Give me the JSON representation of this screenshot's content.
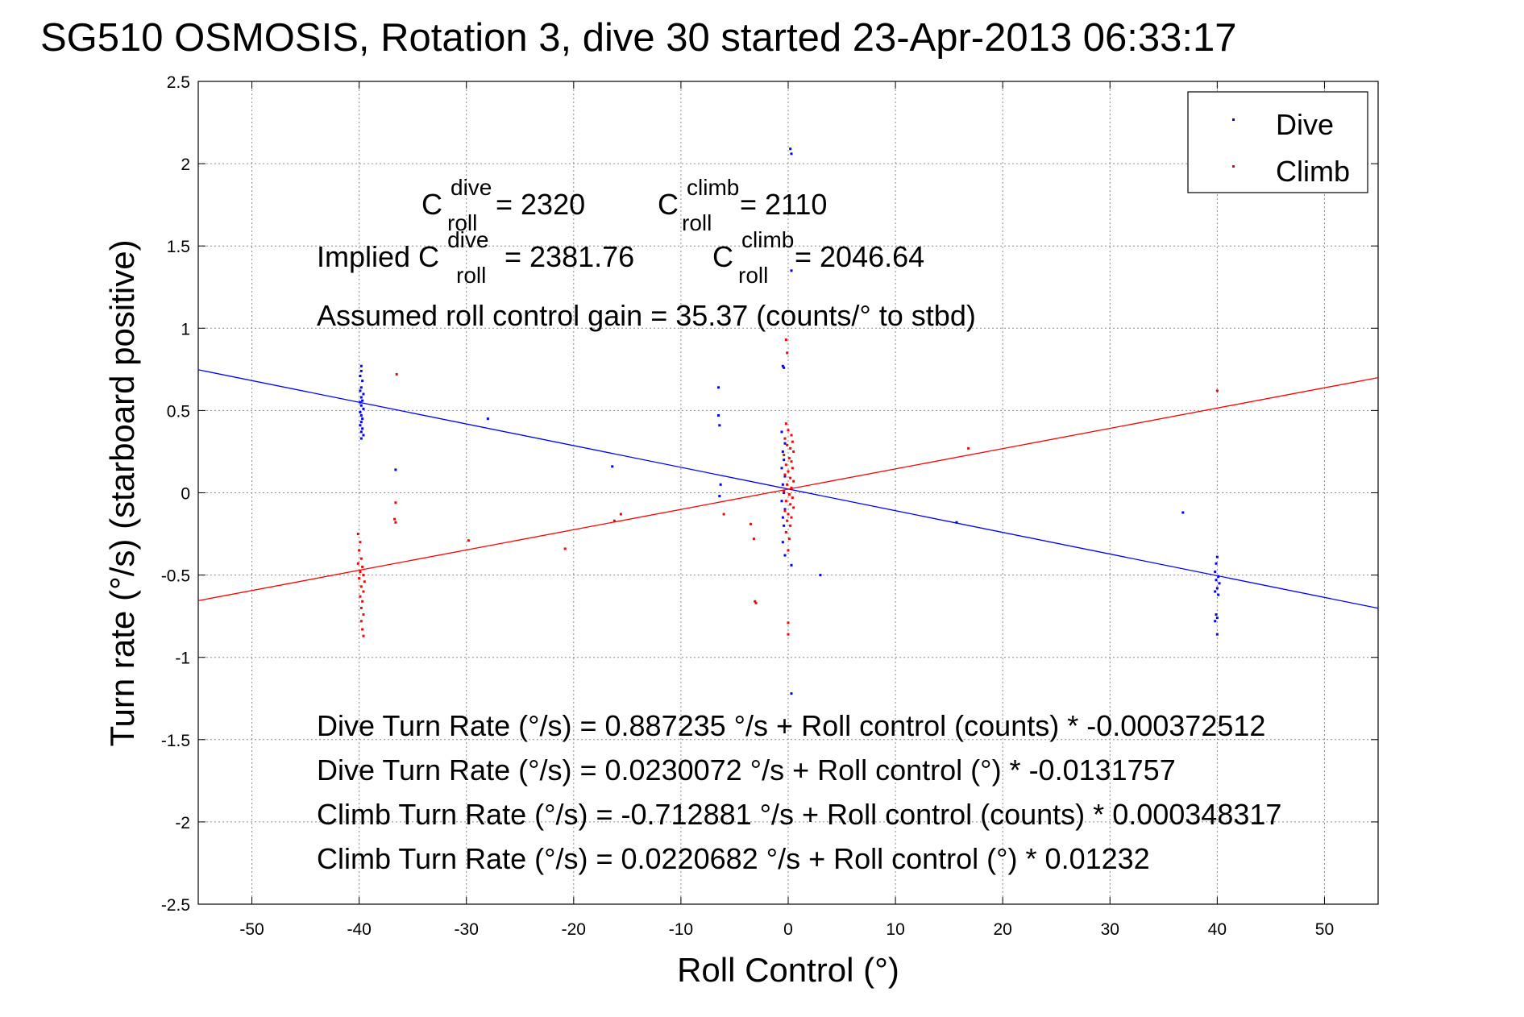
{
  "chart_data": {
    "type": "scatter",
    "title": "SG510 OSMOSIS, Rotation 3, dive 30 started 23-Apr-2013 06:33:17",
    "xlabel": "Roll Control (°)",
    "ylabel": "Turn rate (°/s)  (starboard positive)",
    "xlim": [
      -55,
      55
    ],
    "ylim": [
      -2.5,
      2.5
    ],
    "xticks": [
      -50,
      -40,
      -30,
      -20,
      -10,
      0,
      10,
      20,
      30,
      40,
      50
    ],
    "yticks": [
      -2.5,
      -2,
      -1.5,
      -1,
      -0.5,
      0,
      0.5,
      1,
      1.5,
      2,
      2.5
    ],
    "grid": true,
    "legend_position": "top-right",
    "series": [
      {
        "name": "Dive",
        "color": "#0000ff",
        "points": [
          [
            -39.8,
            0.77
          ],
          [
            -39.8,
            0.74
          ],
          [
            -39.9,
            0.71
          ],
          [
            -39.7,
            0.68
          ],
          [
            -39.8,
            0.64
          ],
          [
            -39.9,
            0.62
          ],
          [
            -39.6,
            0.6
          ],
          [
            -39.8,
            0.58
          ],
          [
            -39.7,
            0.56
          ],
          [
            -39.9,
            0.55
          ],
          [
            -39.8,
            0.53
          ],
          [
            -39.6,
            0.51
          ],
          [
            -39.9,
            0.49
          ],
          [
            -39.8,
            0.47
          ],
          [
            -39.7,
            0.45
          ],
          [
            -39.8,
            0.43
          ],
          [
            -39.9,
            0.41
          ],
          [
            -39.7,
            0.39
          ],
          [
            -39.8,
            0.37
          ],
          [
            -39.6,
            0.35
          ],
          [
            -39.8,
            0.33
          ],
          [
            -36.6,
            0.14
          ],
          [
            -28.0,
            0.45
          ],
          [
            -16.4,
            0.16
          ],
          [
            -6.5,
            0.64
          ],
          [
            -6.5,
            0.47
          ],
          [
            -6.4,
            0.41
          ],
          [
            -6.3,
            0.05
          ],
          [
            -6.4,
            -0.02
          ],
          [
            -0.5,
            0.77
          ],
          [
            -0.4,
            0.76
          ],
          [
            -0.6,
            0.37
          ],
          [
            -0.3,
            0.3
          ],
          [
            -0.5,
            0.25
          ],
          [
            -0.4,
            0.2
          ],
          [
            -0.6,
            0.15
          ],
          [
            -0.3,
            0.1
          ],
          [
            -0.5,
            0.05
          ],
          [
            -0.4,
            0.0
          ],
          [
            -0.6,
            -0.05
          ],
          [
            -0.3,
            -0.1
          ],
          [
            -0.5,
            -0.15
          ],
          [
            -0.4,
            -0.2
          ],
          [
            -0.5,
            -0.3
          ],
          [
            -0.3,
            -0.38
          ],
          [
            0.2,
            2.09
          ],
          [
            0.3,
            2.06
          ],
          [
            0.3,
            1.35
          ],
          [
            0.3,
            -0.44
          ],
          [
            0.3,
            -1.22
          ],
          [
            3.0,
            -0.5
          ],
          [
            15.7,
            -0.18
          ],
          [
            36.8,
            -0.12
          ],
          [
            40.0,
            -0.39
          ],
          [
            39.9,
            -0.43
          ],
          [
            39.8,
            -0.48
          ],
          [
            40.1,
            -0.51
          ],
          [
            39.9,
            -0.53
          ],
          [
            40.2,
            -0.55
          ],
          [
            40.0,
            -0.58
          ],
          [
            39.8,
            -0.6
          ],
          [
            40.1,
            -0.62
          ],
          [
            39.9,
            -0.74
          ],
          [
            40.0,
            -0.76
          ],
          [
            39.8,
            -0.78
          ],
          [
            40.0,
            -0.86
          ]
        ],
        "fit": {
          "intercept": 0.0230072,
          "slope": -0.0131757
        }
      },
      {
        "name": "Climb",
        "color": "#ff0000",
        "points": [
          [
            -40.1,
            -0.25
          ],
          [
            -39.9,
            -0.3
          ],
          [
            -40.0,
            -0.35
          ],
          [
            -39.8,
            -0.4
          ],
          [
            -40.1,
            -0.43
          ],
          [
            -39.7,
            -0.45
          ],
          [
            -39.9,
            -0.48
          ],
          [
            -39.6,
            -0.5
          ],
          [
            -40.0,
            -0.52
          ],
          [
            -39.5,
            -0.54
          ],
          [
            -39.8,
            -0.57
          ],
          [
            -39.6,
            -0.6
          ],
          [
            -39.9,
            -0.63
          ],
          [
            -39.7,
            -0.66
          ],
          [
            -39.8,
            -0.7
          ],
          [
            -39.6,
            -0.74
          ],
          [
            -39.8,
            -0.78
          ],
          [
            -39.7,
            -0.83
          ],
          [
            -39.6,
            -0.87
          ],
          [
            -36.5,
            0.72
          ],
          [
            -36.6,
            -0.06
          ],
          [
            -36.7,
            -0.16
          ],
          [
            -36.6,
            -0.18
          ],
          [
            -29.8,
            -0.29
          ],
          [
            -20.8,
            -0.34
          ],
          [
            -16.2,
            -0.17
          ],
          [
            -15.6,
            -0.13
          ],
          [
            -6.0,
            -0.13
          ],
          [
            -3.5,
            -0.19
          ],
          [
            -3.2,
            -0.28
          ],
          [
            -3.1,
            -0.66
          ],
          [
            -3.0,
            -0.67
          ],
          [
            -0.2,
            0.93
          ],
          [
            -0.1,
            0.85
          ],
          [
            -0.2,
            0.42
          ],
          [
            0.0,
            0.38
          ],
          [
            0.3,
            0.35
          ],
          [
            -0.3,
            0.33
          ],
          [
            0.4,
            0.31
          ],
          [
            -0.1,
            0.29
          ],
          [
            0.2,
            0.27
          ],
          [
            0.5,
            0.25
          ],
          [
            -0.4,
            0.23
          ],
          [
            0.1,
            0.21
          ],
          [
            0.3,
            0.19
          ],
          [
            -0.2,
            0.17
          ],
          [
            0.4,
            0.15
          ],
          [
            0.0,
            0.13
          ],
          [
            -0.3,
            0.11
          ],
          [
            0.2,
            0.09
          ],
          [
            0.5,
            0.07
          ],
          [
            -0.1,
            0.05
          ],
          [
            0.3,
            0.03
          ],
          [
            -0.4,
            0.01
          ],
          [
            0.1,
            -0.01
          ],
          [
            0.4,
            -0.03
          ],
          [
            -0.2,
            -0.05
          ],
          [
            0.2,
            -0.07
          ],
          [
            0.5,
            -0.09
          ],
          [
            -0.3,
            -0.11
          ],
          [
            0.0,
            -0.13
          ],
          [
            0.3,
            -0.15
          ],
          [
            -0.1,
            -0.17
          ],
          [
            0.2,
            -0.2
          ],
          [
            -0.2,
            -0.24
          ],
          [
            0.1,
            -0.28
          ],
          [
            0.0,
            -0.35
          ],
          [
            0.0,
            -0.79
          ],
          [
            0.0,
            -0.86
          ],
          [
            16.8,
            0.27
          ],
          [
            40.0,
            0.62
          ]
        ],
        "fit": {
          "intercept": 0.0220682,
          "slope": 0.01232
        }
      }
    ],
    "annotations": {
      "cdive_label": "C",
      "cdive_sup": "dive",
      "cdive_sub": "roll",
      "cdive_val": " = 2320",
      "cclimb_label": "C",
      "cclimb_sup": "climb",
      "cclimb_sub": "roll",
      "cclimb_val": " = 2110",
      "implied_prefix": "Implied C",
      "idive_sup": "dive",
      "idive_sub": "roll",
      "idive_val": " = 2381.76",
      "iclimb_label": "C",
      "iclimb_sup": "climb",
      "iclimb_sub": "roll",
      "iclimb_val": " = 2046.64",
      "gain": "Assumed roll control gain = 35.37 (counts/° to stbd)",
      "eq1": "Dive Turn Rate (°/s) = 0.887235 °/s + Roll control (counts) * -0.000372512",
      "eq2": "Dive Turn Rate (°/s) = 0.0230072 °/s + Roll control (°) * -0.0131757",
      "eq3": "Climb Turn Rate (°/s) = -0.712881 °/s + Roll control (counts) * 0.000348317",
      "eq4": "Climb Turn Rate (°/s) = 0.0220682 °/s + Roll control (°) * 0.01232"
    }
  }
}
